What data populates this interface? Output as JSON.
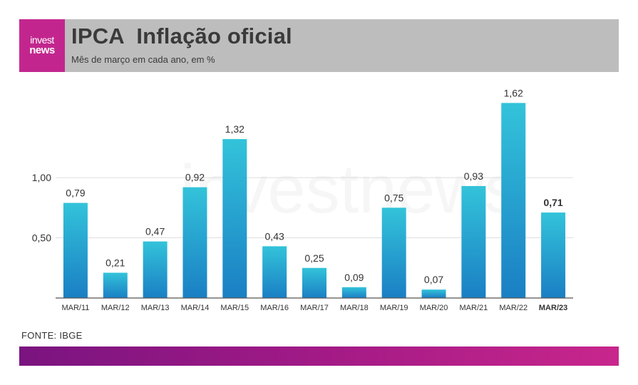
{
  "header": {
    "logo_line1": "invest",
    "logo_line2": "news",
    "title": "IPCA  Inflação oficial",
    "subtitle": "Mês de março em cada ano, em %"
  },
  "watermark": "investnews",
  "source": "FONTE: IBGE",
  "colors": {
    "bar_top": "#33c3da",
    "bar_bottom": "#1a7fc4",
    "header_bg": "#bdbdbd",
    "logo_bg": "#c2268e",
    "footer_start": "#7a1480",
    "footer_end": "#c8268c"
  },
  "chart_data": {
    "type": "bar",
    "categories": [
      "MAR/11",
      "MAR/12",
      "MAR/13",
      "MAR/14",
      "MAR/15",
      "MAR/16",
      "MAR/17",
      "MAR/18",
      "MAR/19",
      "MAR/20",
      "MAR/21",
      "MAR/22",
      "MAR/23"
    ],
    "values": [
      0.79,
      0.21,
      0.47,
      0.92,
      1.32,
      0.43,
      0.25,
      0.09,
      0.75,
      0.07,
      0.93,
      1.62,
      0.71
    ],
    "value_labels": [
      "0,79",
      "0,21",
      "0,47",
      "0,92",
      "1,32",
      "0,43",
      "0,25",
      "0,09",
      "0,75",
      "0,07",
      "0,93",
      "1,62",
      "0,71"
    ],
    "highlight_index": 12,
    "y_ticks": [
      0.5,
      1.0
    ],
    "y_tick_labels": [
      "0,50",
      "1,00"
    ],
    "ylim": [
      0,
      1.8
    ],
    "grid": true,
    "xlabel": "",
    "ylabel": ""
  }
}
